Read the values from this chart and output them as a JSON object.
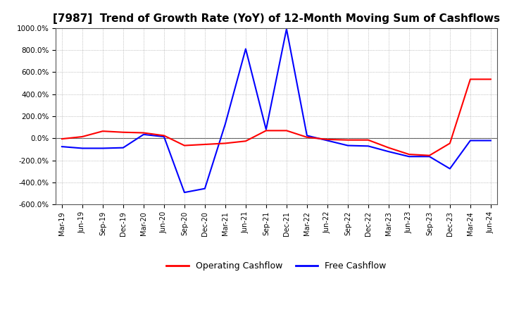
{
  "title": "[7987]  Trend of Growth Rate (YoY) of 12-Month Moving Sum of Cashflows",
  "title_fontsize": 11,
  "ylim": [
    -600,
    1000
  ],
  "yticks": [
    -600,
    -400,
    -200,
    0,
    200,
    400,
    600,
    800,
    1000
  ],
  "ytick_labels": [
    "-600.0%",
    "-400.0%",
    "-200.0%",
    "0.0%",
    "200.0%",
    "400.0%",
    "600.0%",
    "800.0%",
    "1000.0%"
  ],
  "x_labels": [
    "Mar-19",
    "Jun-19",
    "Sep-19",
    "Dec-19",
    "Mar-20",
    "Jun-20",
    "Sep-20",
    "Dec-20",
    "Mar-21",
    "Jun-21",
    "Sep-21",
    "Dec-21",
    "Mar-22",
    "Jun-22",
    "Sep-22",
    "Dec-22",
    "Mar-23",
    "Jun-23",
    "Sep-23",
    "Dec-23",
    "Mar-24",
    "Jun-24"
  ],
  "operating_cashflow": [
    -5,
    15,
    65,
    55,
    50,
    25,
    -65,
    -55,
    -45,
    -25,
    70,
    70,
    10,
    -10,
    -15,
    -15,
    -85,
    -145,
    -155,
    -45,
    535,
    535
  ],
  "free_cashflow": [
    -75,
    -90,
    -90,
    -85,
    35,
    15,
    -490,
    -455,
    130,
    810,
    80,
    990,
    25,
    -20,
    -65,
    -70,
    -120,
    -165,
    -165,
    -275,
    -20,
    -20
  ],
  "operating_color": "#ff0000",
  "free_color": "#0000ff",
  "background_color": "#ffffff",
  "grid_color": "#999999",
  "legend_labels": [
    "Operating Cashflow",
    "Free Cashflow"
  ],
  "line_width": 1.5
}
